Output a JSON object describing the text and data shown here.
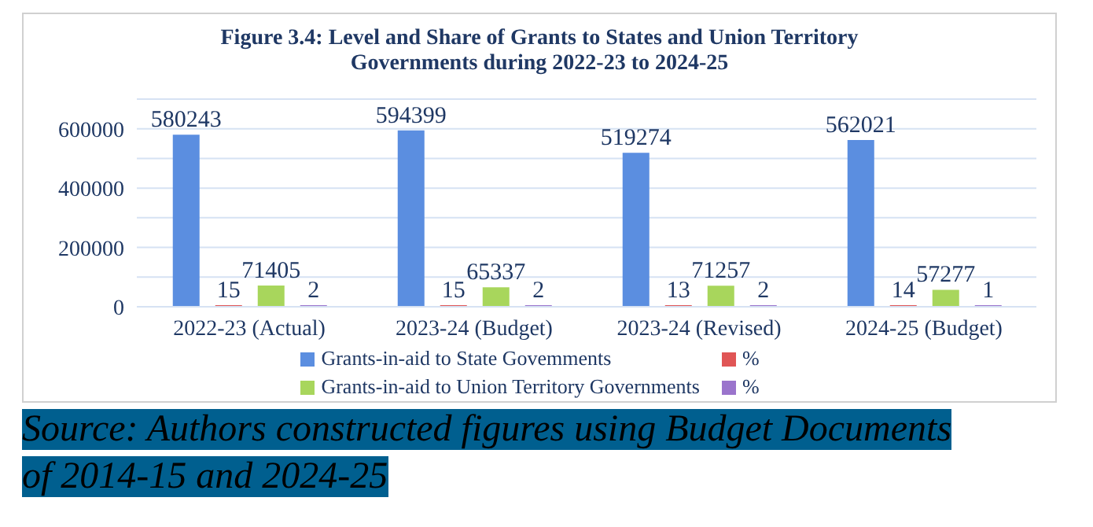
{
  "chart_data": {
    "type": "bar",
    "title": "Figure 3.4: Level and Share of Grants to States and Union Territory Governments during 2022-23 to 2024-25",
    "categories": [
      "2022-23 (Actual)",
      "2023-24 (Budget)",
      "2023-24 (Revised)",
      "2024-25  (Budget)"
    ],
    "series": [
      {
        "name": "Grants-in-aid to State Govemments",
        "color": "#5b8ee0",
        "values": [
          580243,
          594399,
          519274,
          562021
        ]
      },
      {
        "name": "%",
        "color": "#e05555",
        "values": [
          15,
          15,
          13,
          14
        ]
      },
      {
        "name": "Grants-in-aid to Union Territory Governments",
        "color": "#a8d65c",
        "values": [
          71405,
          65337,
          71257,
          57277
        ]
      },
      {
        "name": "%",
        "color": "#9a74cc",
        "values": [
          2,
          2,
          2,
          1
        ]
      }
    ],
    "ylim": [
      0,
      700000
    ],
    "yticks": [
      0,
      {
        "value": 100000,
        "label": null
      },
      200000,
      {
        "value": 300000,
        "label": null
      },
      400000,
      {
        "value": 500000,
        "label": null
      },
      600000,
      {
        "value": 700000,
        "label": null
      }
    ],
    "grid": "y",
    "legend": "bottom",
    "data_labels": true,
    "annotations": [
      "Source: Authors constructed figures using Budget Documents of 2014-15 and 2024-25"
    ]
  }
}
